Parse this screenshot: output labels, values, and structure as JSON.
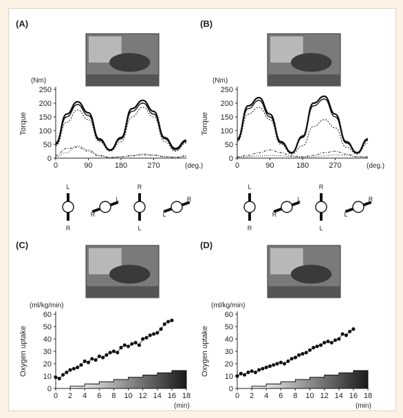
{
  "chart_data": [
    {
      "panel": "(A)",
      "type": "line",
      "ylabel": "Torque",
      "y_unit": "(Nm)",
      "x_unit": "(deg.)",
      "xlim": [
        0,
        360
      ],
      "ylim": [
        0,
        250
      ],
      "x_ticks": [
        0,
        90,
        180,
        270
      ],
      "y_ticks": [
        0,
        50,
        100,
        150,
        200,
        250
      ],
      "grid": false,
      "x": [
        0,
        30,
        60,
        90,
        120,
        150,
        180,
        210,
        240,
        270,
        300,
        330,
        360
      ],
      "series": [
        {
          "values": [
            55,
            160,
            205,
            165,
            70,
            30,
            75,
            180,
            210,
            170,
            75,
            35,
            65
          ]
        },
        {
          "values": [
            50,
            150,
            195,
            155,
            65,
            28,
            70,
            170,
            200,
            160,
            70,
            30,
            60
          ]
        },
        {
          "values": [
            45,
            130,
            175,
            140,
            60,
            25,
            60,
            150,
            185,
            150,
            60,
            25,
            55
          ]
        },
        {
          "values": [
            10,
            35,
            40,
            25,
            8,
            2,
            5,
            8,
            12,
            10,
            5,
            3,
            8
          ]
        },
        {
          "values": [
            5,
            20,
            45,
            30,
            10,
            3,
            5,
            10,
            15,
            12,
            6,
            4,
            6
          ]
        }
      ],
      "pedal_positions": [
        {
          "top": "L",
          "bottom": "R"
        },
        {
          "left": "R",
          "right": "L"
        },
        {
          "top": "R",
          "bottom": "L"
        },
        {
          "left": "L",
          "right": "R"
        }
      ]
    },
    {
      "panel": "(B)",
      "type": "line",
      "ylabel": "Torque",
      "y_unit": "(Nm)",
      "x_unit": "(deg.)",
      "xlim": [
        0,
        360
      ],
      "ylim": [
        0,
        250
      ],
      "x_ticks": [
        0,
        90,
        180,
        270
      ],
      "y_ticks": [
        0,
        50,
        100,
        150,
        200,
        250
      ],
      "grid": false,
      "x": [
        0,
        30,
        60,
        90,
        120,
        150,
        180,
        210,
        240,
        270,
        300,
        330,
        360
      ],
      "series": [
        {
          "values": [
            70,
            190,
            220,
            160,
            60,
            20,
            80,
            200,
            225,
            160,
            60,
            20,
            70
          ]
        },
        {
          "values": [
            65,
            180,
            210,
            150,
            55,
            18,
            75,
            190,
            215,
            150,
            55,
            18,
            65
          ]
        },
        {
          "values": [
            60,
            160,
            185,
            140,
            50,
            15,
            45,
            115,
            140,
            110,
            40,
            15,
            55
          ]
        },
        {
          "values": [
            5,
            10,
            20,
            30,
            20,
            8,
            5,
            10,
            20,
            25,
            15,
            5,
            5
          ]
        },
        {
          "values": [
            3,
            5,
            8,
            10,
            8,
            5,
            3,
            5,
            8,
            12,
            10,
            5,
            3
          ]
        }
      ],
      "pedal_positions": [
        {
          "top": "L",
          "bottom": "R"
        },
        {
          "left": "R",
          "right": "L"
        },
        {
          "top": "R",
          "bottom": "L"
        },
        {
          "left": "L",
          "right": "R"
        }
      ]
    },
    {
      "panel": "(C)",
      "type": "scatter",
      "ylabel": "Oxygen uptake",
      "y_unit": "(ml/kg/min)",
      "x_unit": "(min)",
      "xlim": [
        0,
        18
      ],
      "ylim": [
        0,
        60
      ],
      "x_ticks": [
        0,
        2,
        4,
        6,
        8,
        10,
        12,
        14,
        16,
        18
      ],
      "y_ticks": [
        0,
        10,
        20,
        30,
        40,
        50,
        60
      ],
      "grid": false,
      "x": [
        0,
        0.5,
        1,
        1.5,
        2,
        2.5,
        3,
        3.5,
        4,
        4.5,
        5,
        5.5,
        6,
        6.5,
        7,
        7.5,
        8,
        8.5,
        9,
        9.5,
        10,
        10.5,
        11,
        11.5,
        12,
        12.5,
        13,
        13.5,
        14,
        14.5,
        15,
        15.5,
        16
      ],
      "values": [
        9,
        8,
        11,
        13,
        15,
        16,
        17,
        19,
        22,
        21,
        24,
        23,
        26,
        25,
        27,
        29,
        30,
        29,
        33,
        35,
        34,
        36,
        37,
        35,
        40,
        41,
        43,
        44,
        45,
        48,
        52,
        54,
        55
      ],
      "workload_steps_start_min": [
        2,
        4,
        6,
        8,
        10,
        12,
        14,
        16
      ],
      "workload_step_end_min": 18,
      "workload_step_levels_fraction": [
        0.125,
        0.25,
        0.375,
        0.5,
        0.625,
        0.75,
        0.875,
        1.0
      ]
    },
    {
      "panel": "(D)",
      "type": "scatter",
      "ylabel": "Oxygen uptake",
      "y_unit": "(ml/kg/min)",
      "x_unit": "(min)",
      "xlim": [
        0,
        18
      ],
      "ylim": [
        0,
        60
      ],
      "x_ticks": [
        0,
        2,
        4,
        6,
        8,
        10,
        12,
        14,
        16,
        18
      ],
      "y_ticks": [
        0,
        10,
        20,
        30,
        40,
        50,
        60
      ],
      "grid": false,
      "x": [
        0,
        0.5,
        1,
        1.5,
        2,
        2.5,
        3,
        3.5,
        4,
        4.5,
        5,
        5.5,
        6,
        6.5,
        7,
        7.5,
        8,
        8.5,
        9,
        9.5,
        10,
        10.5,
        11,
        11.5,
        12,
        12.5,
        13,
        13.5,
        14,
        14.5,
        15,
        15.5,
        16
      ],
      "values": [
        10,
        12,
        11,
        13,
        14,
        13,
        15,
        16,
        17,
        18,
        19,
        20,
        21,
        20,
        22,
        24,
        25,
        27,
        28,
        29,
        31,
        33,
        34,
        35,
        37,
        38,
        37,
        39,
        40,
        44,
        43,
        46,
        48
      ],
      "workload_steps_start_min": [
        2,
        4,
        6,
        8,
        10,
        12,
        14,
        16
      ],
      "workload_step_end_min": 18,
      "workload_step_levels_fraction": [
        0.125,
        0.25,
        0.375,
        0.5,
        0.625,
        0.75,
        0.875,
        1.0
      ]
    }
  ]
}
